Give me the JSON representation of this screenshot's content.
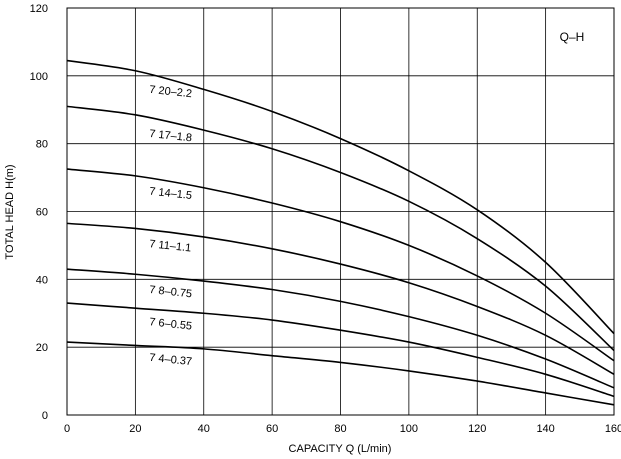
{
  "chart_data": {
    "type": "line",
    "title": "",
    "box_label": "Q–H",
    "xlabel": "CAPACITY  Q (L/min)",
    "ylabel": "TOTAL HEAD  H(m)",
    "xlim": [
      0,
      160
    ],
    "ylim": [
      0,
      120
    ],
    "x_ticks": [
      "0",
      "20",
      "40",
      "60",
      "80",
      "100",
      "120",
      "140",
      "160"
    ],
    "y_ticks": [
      "0",
      "20",
      "40",
      "60",
      "80",
      "100",
      "120"
    ],
    "grid": true,
    "series": [
      {
        "name": "7 20–2.2",
        "x": [
          0,
          20,
          40,
          60,
          80,
          100,
          120,
          140,
          160
        ],
        "y": [
          104.5,
          101.5,
          96,
          89.5,
          81.5,
          72,
          60.5,
          45,
          24
        ]
      },
      {
        "name": "7 17–1.8",
        "x": [
          0,
          20,
          40,
          60,
          80,
          100,
          120,
          140,
          160
        ],
        "y": [
          91,
          88.5,
          84,
          78.5,
          71.5,
          63,
          52,
          38,
          19
        ]
      },
      {
        "name": "7 14–1.5",
        "x": [
          0,
          20,
          40,
          60,
          80,
          100,
          120,
          140,
          160
        ],
        "y": [
          72.5,
          70.5,
          67,
          62.5,
          57,
          50,
          41,
          30,
          16
        ]
      },
      {
        "name": "7 11–1.1",
        "x": [
          0,
          20,
          40,
          60,
          80,
          100,
          120,
          140,
          160
        ],
        "y": [
          56.5,
          55,
          52.5,
          49,
          44.5,
          39,
          32,
          23.5,
          12
        ]
      },
      {
        "name": "7 8–0.75",
        "x": [
          0,
          20,
          40,
          60,
          80,
          100,
          120,
          140,
          160
        ],
        "y": [
          43,
          41.5,
          39.5,
          37,
          33.5,
          29,
          23.5,
          16.5,
          8
        ]
      },
      {
        "name": "7 6–0.55",
        "x": [
          0,
          20,
          40,
          60,
          80,
          100,
          120,
          140,
          160
        ],
        "y": [
          33,
          31.5,
          30,
          28,
          25,
          21.5,
          17,
          12,
          5.5
        ]
      },
      {
        "name": "7 4–0.37",
        "x": [
          0,
          20,
          40,
          60,
          80,
          100,
          120,
          140,
          160
        ],
        "y": [
          21.5,
          20.5,
          19.5,
          17.5,
          15.5,
          13,
          10,
          6.5,
          3
        ]
      }
    ],
    "label_positions": [
      {
        "series": 0,
        "x": 24,
        "y": 95
      },
      {
        "series": 1,
        "x": 24,
        "y": 82
      },
      {
        "series": 2,
        "x": 24,
        "y": 65
      },
      {
        "series": 3,
        "x": 24,
        "y": 49.5
      },
      {
        "series": 4,
        "x": 24,
        "y": 36
      },
      {
        "series": 5,
        "x": 24,
        "y": 26.5
      },
      {
        "series": 6,
        "x": 24,
        "y": 16
      }
    ]
  }
}
